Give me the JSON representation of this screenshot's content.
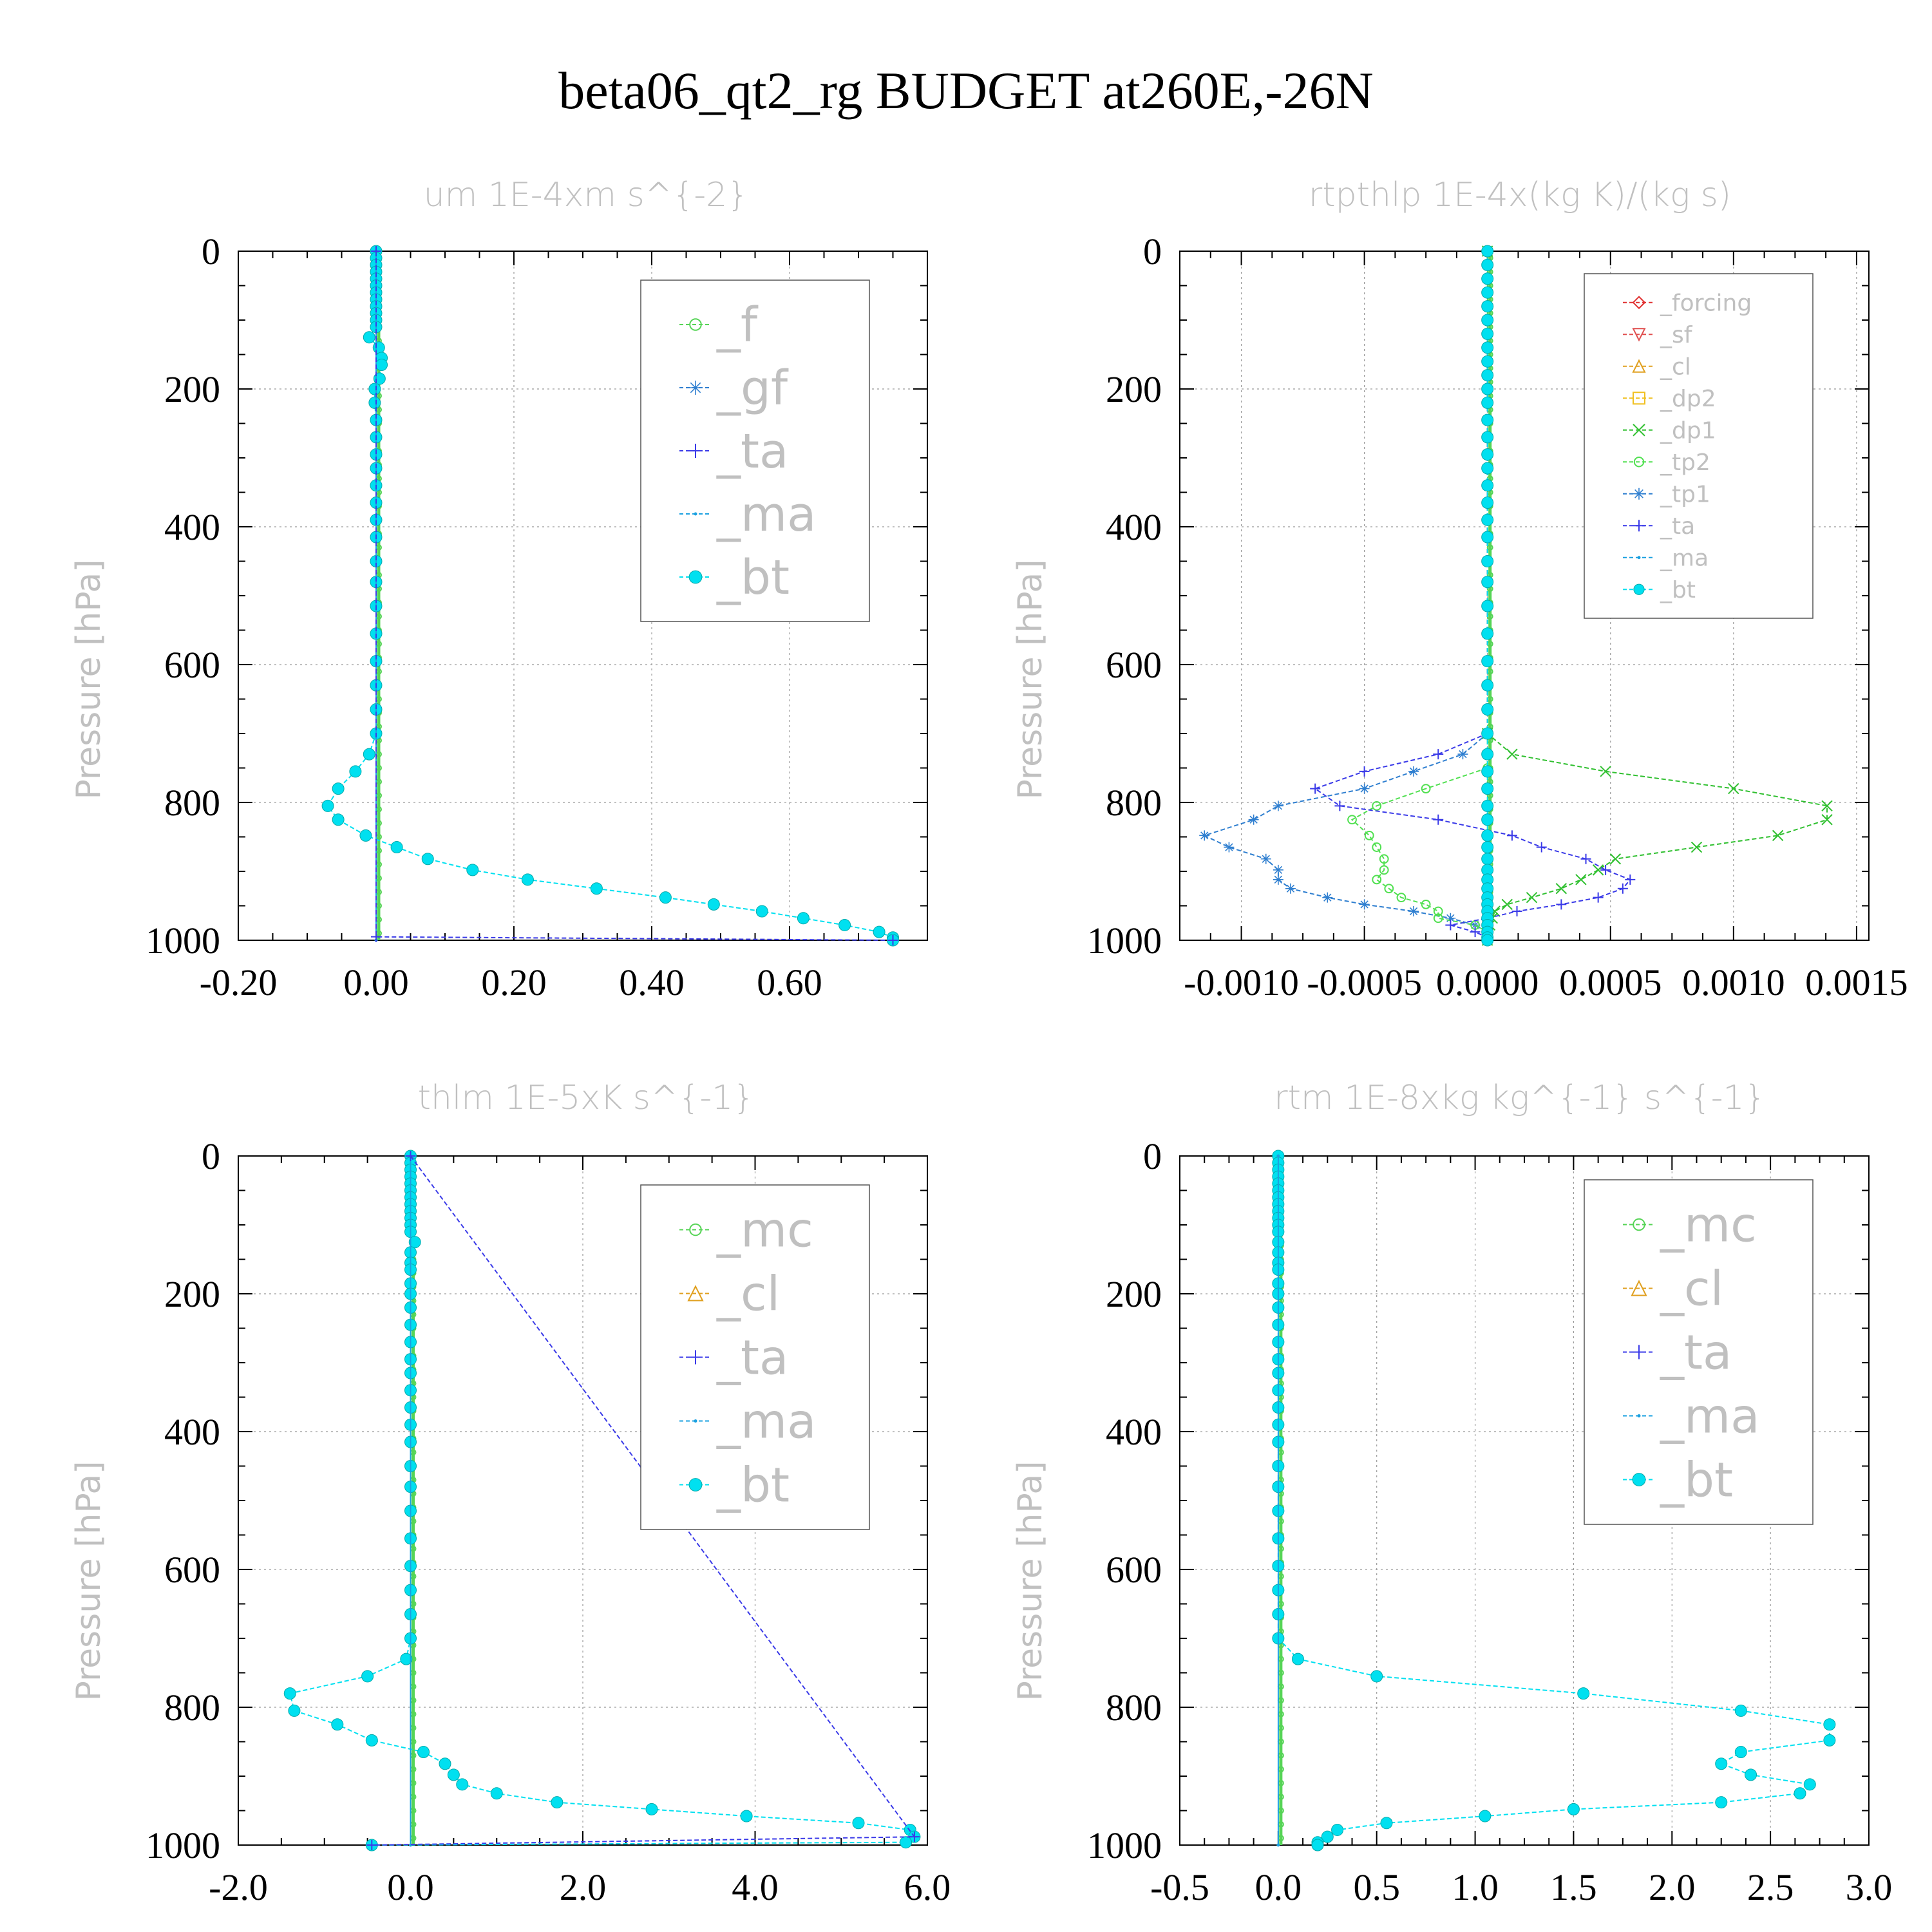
{
  "title": "beta06_qt2_rg  BUDGET at260E,-26N",
  "colors": {
    "f": "#56d456",
    "gf": "#2f7fd0",
    "ta": "#3a3ae8",
    "ma": "#1aa0e0",
    "bt": "#00e0f0",
    "forcing": "#e03030",
    "sf": "#e05050",
    "cl": "#e0a020",
    "dp2": "#f0c020",
    "dp1": "#30c030",
    "tp2": "#50e050",
    "tp1": "#2f7fd0",
    "mc": "#56d456"
  },
  "chart_data": [
    {
      "type": "line",
      "title": "um  1E-4xm s^{-2}",
      "ylabel": "Pressure [hPa]",
      "xlim": [
        -0.2,
        0.8
      ],
      "ylim": [
        1000,
        0
      ],
      "xticks": [
        "-0.20",
        "0.00",
        "0.20",
        "0.40",
        "0.60"
      ],
      "xtick_values": [
        -0.2,
        0,
        0.2,
        0.4,
        0.6
      ],
      "yticks": [
        "0",
        "200",
        "400",
        "600",
        "800",
        "1000"
      ],
      "legend": [
        "_f",
        "_gf",
        "_ta",
        "_ma",
        "_bt"
      ],
      "legend_keys": [
        "f",
        "gf",
        "ta",
        "ma",
        "bt"
      ],
      "legend_size": "large",
      "series": [
        {
          "name": "_bt",
          "key": "bt",
          "p": [
            0,
            10,
            20,
            30,
            40,
            50,
            60,
            70,
            80,
            90,
            100,
            110,
            125,
            140,
            155,
            165,
            185,
            200,
            220,
            245,
            270,
            295,
            315,
            340,
            365,
            390,
            415,
            450,
            480,
            515,
            555,
            595,
            630,
            665,
            700,
            730,
            755,
            780,
            805,
            825,
            848,
            865,
            882,
            898,
            912,
            925,
            938,
            948,
            958,
            968,
            978,
            988,
            996,
            1000
          ],
          "x": [
            0,
            0,
            0,
            0,
            0,
            0,
            0,
            0,
            0,
            0,
            0,
            0,
            -0.01,
            0.004,
            0.008,
            0.008,
            0.005,
            -0.002,
            -0.002,
            0,
            0,
            0,
            0,
            0,
            0,
            0,
            0,
            0,
            0,
            0,
            0,
            0,
            0,
            0,
            0,
            -0.01,
            -0.03,
            -0.055,
            -0.07,
            -0.055,
            -0.015,
            0.03,
            0.075,
            0.14,
            0.22,
            0.32,
            0.42,
            0.49,
            0.56,
            0.62,
            0.68,
            0.73,
            0.75,
            0.75
          ]
        },
        {
          "name": "_ma",
          "key": "ma",
          "p": [
            0,
            1000
          ],
          "x": [
            0,
            0
          ]
        },
        {
          "name": "_ta",
          "key": "ta",
          "p": [
            0,
            995,
            1000
          ],
          "x": [
            0,
            0,
            0.75
          ]
        }
      ]
    },
    {
      "type": "line",
      "title": "rtpthlp  1E-4x(kg K)/(kg s)",
      "ylabel": "Pressure [hPa]",
      "xlim": [
        -0.00125,
        0.00155
      ],
      "ylim": [
        1000,
        0
      ],
      "xticks": [
        "-0.0010",
        "-0.0005",
        "0.0000",
        "0.0005",
        "0.0010",
        "0.0015"
      ],
      "xtick_values": [
        -0.001,
        -0.0005,
        0,
        0.0005,
        0.001,
        0.0015
      ],
      "yticks": [
        "0",
        "200",
        "400",
        "600",
        "800",
        "1000"
      ],
      "legend": [
        "_forcing",
        "_sf",
        "_cl",
        "_dp2",
        "_dp1",
        "_tp2",
        "_tp1",
        "_ta",
        "_ma",
        "_bt"
      ],
      "legend_keys": [
        "forcing",
        "sf",
        "cl",
        "dp2",
        "dp1",
        "tp2",
        "tp1",
        "ta",
        "ma",
        "bt"
      ],
      "legend_size": "small",
      "series": [
        {
          "name": "_dp1",
          "key": "dp1",
          "p": [
            0,
            700,
            730,
            755,
            780,
            805,
            825,
            848,
            865,
            882,
            898,
            912,
            925,
            938,
            948,
            958,
            968,
            978,
            988,
            996,
            1000
          ],
          "x": [
            0,
            0,
            0.0001,
            0.00048,
            0.001,
            0.00138,
            0.00138,
            0.00118,
            0.00085,
            0.00052,
            0.00045,
            0.00038,
            0.0003,
            0.00018,
            8e-05,
            3e-05,
            2e-05,
            1e-05,
            0,
            0,
            0
          ]
        },
        {
          "name": "_tp1",
          "key": "tp1",
          "p": [
            0,
            700,
            730,
            755,
            780,
            805,
            825,
            848,
            865,
            882,
            898,
            912,
            925,
            938,
            948,
            958,
            968,
            978,
            988,
            996,
            1000
          ],
          "x": [
            0,
            0,
            -0.0001,
            -0.0003,
            -0.0005,
            -0.00085,
            -0.00095,
            -0.00115,
            -0.00105,
            -0.0009,
            -0.00085,
            -0.00085,
            -0.0008,
            -0.00065,
            -0.0005,
            -0.0003,
            -0.00015,
            -5e-05,
            0,
            0,
            0
          ]
        },
        {
          "name": "_tp2",
          "key": "tp2",
          "p": [
            0,
            750,
            780,
            805,
            825,
            848,
            865,
            882,
            898,
            912,
            925,
            938,
            948,
            958,
            968,
            978,
            988,
            996,
            1000
          ],
          "x": [
            0,
            0,
            -0.00025,
            -0.00045,
            -0.00055,
            -0.00048,
            -0.00045,
            -0.00042,
            -0.00042,
            -0.00045,
            -0.0004,
            -0.00035,
            -0.00025,
            -0.0002,
            -0.0002,
            -5e-05,
            0,
            0,
            0
          ]
        },
        {
          "name": "_ta",
          "key": "ta",
          "p": [
            0,
            700,
            730,
            755,
            780,
            805,
            825,
            848,
            865,
            882,
            898,
            912,
            925,
            938,
            948,
            958,
            968,
            978,
            988,
            996,
            1000
          ],
          "x": [
            0,
            0,
            -0.0002,
            -0.0005,
            -0.0007,
            -0.0006,
            -0.0002,
            0.0001,
            0.00022,
            0.0004,
            0.00048,
            0.00058,
            0.00055,
            0.00045,
            0.0003,
            0.00012,
            0,
            -0.00015,
            -5e-05,
            0,
            0
          ]
        },
        {
          "name": "_bt",
          "key": "bt",
          "p": [
            0,
            20,
            40,
            60,
            80,
            100,
            120,
            140,
            160,
            180,
            200,
            220,
            245,
            270,
            295,
            315,
            340,
            365,
            390,
            415,
            450,
            480,
            515,
            555,
            595,
            630,
            665,
            700,
            730,
            755,
            780,
            805,
            825,
            848,
            865,
            882,
            898,
            912,
            925,
            938,
            948,
            958,
            968,
            978,
            988,
            996,
            1000
          ],
          "x": [
            0,
            0,
            0,
            0,
            0,
            0,
            0,
            0,
            0,
            0,
            0,
            0,
            0,
            0,
            0,
            0,
            0,
            0,
            0,
            0,
            0,
            0,
            0,
            0,
            0,
            0,
            0,
            0,
            0,
            0,
            0,
            0,
            0,
            0,
            0,
            0,
            0,
            0,
            0,
            0,
            0,
            0,
            0,
            0,
            0,
            0,
            0
          ]
        }
      ]
    },
    {
      "type": "line",
      "title": "thlm  1E-5xK s^{-1}",
      "ylabel": "Pressure [hPa]",
      "xlim": [
        -2.0,
        6.0
      ],
      "ylim": [
        1000,
        0
      ],
      "xticks": [
        "-2.0",
        "0.0",
        "2.0",
        "4.0",
        "6.0"
      ],
      "xtick_values": [
        -2,
        0,
        2,
        4,
        6
      ],
      "yticks": [
        "0",
        "200",
        "400",
        "600",
        "800",
        "1000"
      ],
      "legend": [
        "_mc",
        "_cl",
        "_ta",
        "_ma",
        "_bt"
      ],
      "legend_keys": [
        "mc",
        "cl",
        "ta",
        "ma",
        "bt"
      ],
      "legend_size": "large",
      "series": [
        {
          "name": "_bt",
          "key": "bt",
          "p": [
            0,
            10,
            20,
            30,
            40,
            50,
            60,
            70,
            80,
            90,
            100,
            110,
            125,
            140,
            155,
            165,
            185,
            200,
            220,
            245,
            270,
            295,
            315,
            340,
            365,
            390,
            415,
            450,
            480,
            515,
            555,
            595,
            630,
            665,
            700,
            730,
            755,
            780,
            805,
            825,
            848,
            865,
            882,
            898,
            912,
            925,
            938,
            948,
            958,
            968,
            978,
            988,
            996,
            1000
          ],
          "x": [
            0,
            0,
            0,
            0,
            0,
            0,
            0,
            0,
            0,
            0,
            0,
            0,
            0.05,
            0,
            0,
            0,
            0,
            0,
            0,
            0,
            0,
            0,
            0,
            0,
            0,
            0,
            0,
            0,
            0,
            0,
            0,
            0,
            0,
            0,
            0,
            -0.05,
            -0.5,
            -1.4,
            -1.35,
            -0.85,
            -0.45,
            0.15,
            0.4,
            0.5,
            0.6,
            1.0,
            1.7,
            2.8,
            3.9,
            5.2,
            5.8,
            5.85,
            5.75,
            -0.45
          ]
        },
        {
          "name": "_ma",
          "key": "ma",
          "p": [
            0,
            1000
          ],
          "x": [
            0,
            0
          ]
        },
        {
          "name": "_ta",
          "key": "ta",
          "p": [
            0,
            988,
            1000
          ],
          "x": [
            0,
            5.85,
            -0.45
          ]
        }
      ]
    },
    {
      "type": "line",
      "title": "rtm  1E-8xkg kg^{-1} s^{-1}",
      "ylabel": "Pressure [hPa]",
      "xlim": [
        -0.5,
        3.0
      ],
      "ylim": [
        1000,
        0
      ],
      "xticks": [
        "-0.5",
        "0.0",
        "0.5",
        "1.0",
        "1.5",
        "2.0",
        "2.5",
        "3.0"
      ],
      "xtick_values": [
        -0.5,
        0,
        0.5,
        1,
        1.5,
        2,
        2.5,
        3
      ],
      "yticks": [
        "0",
        "200",
        "400",
        "600",
        "800",
        "1000"
      ],
      "legend": [
        "_mc",
        "_cl",
        "_ta",
        "_ma",
        "_bt"
      ],
      "legend_keys": [
        "mc",
        "cl",
        "ta",
        "ma",
        "bt"
      ],
      "legend_size": "large",
      "series": [
        {
          "name": "_bt",
          "key": "bt",
          "p": [
            0,
            10,
            20,
            30,
            40,
            50,
            60,
            70,
            80,
            90,
            100,
            110,
            125,
            140,
            155,
            165,
            185,
            200,
            220,
            245,
            270,
            295,
            315,
            340,
            365,
            390,
            415,
            450,
            480,
            515,
            555,
            595,
            630,
            665,
            700,
            730,
            755,
            780,
            805,
            825,
            848,
            865,
            882,
            898,
            912,
            925,
            938,
            948,
            958,
            968,
            978,
            988,
            996,
            1000
          ],
          "x": [
            0,
            0,
            0,
            0,
            0,
            0,
            0,
            0,
            0,
            0,
            0,
            0,
            0,
            0,
            0,
            0,
            0,
            0,
            0,
            0,
            0,
            0,
            0,
            0,
            0,
            0,
            0,
            0,
            0,
            0,
            0,
            0,
            0,
            0,
            0,
            0.1,
            0.5,
            1.55,
            2.35,
            2.8,
            2.8,
            2.35,
            2.25,
            2.4,
            2.7,
            2.65,
            2.25,
            1.5,
            1.05,
            0.55,
            0.3,
            0.25,
            0.2,
            0.2
          ]
        },
        {
          "name": "_ma",
          "key": "ma",
          "p": [
            0,
            1000
          ],
          "x": [
            0,
            0
          ]
        }
      ]
    }
  ]
}
